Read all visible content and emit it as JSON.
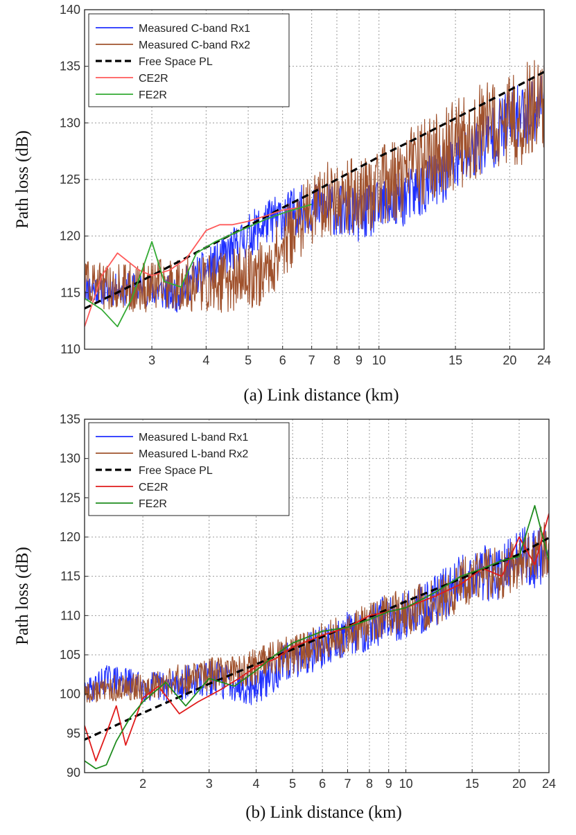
{
  "chart_data": [
    {
      "type": "line",
      "panel": "a",
      "title": "",
      "xlabel": "(a) Link distance (km)",
      "ylabel": "Path loss (dB)",
      "xscale": "log",
      "xlim": [
        2.1,
        24
      ],
      "ylim": [
        110,
        140
      ],
      "xticks": [
        3,
        4,
        5,
        6,
        7,
        8,
        9,
        10,
        15,
        20,
        24
      ],
      "yticks": [
        110,
        115,
        120,
        125,
        130,
        135,
        140
      ],
      "grid": true,
      "legend_position": "top-left",
      "series": [
        {
          "name": "Measured C-band Rx1",
          "color": "#1f2fff",
          "style": "solid",
          "x": [
            2.1,
            2.4,
            2.7,
            3.0,
            3.4,
            3.8,
            4.2,
            4.6,
            5.0,
            5.5,
            6.0,
            6.5,
            7.0,
            7.5,
            8.0,
            8.5,
            9.0,
            10.0,
            11.0,
            12.0,
            13.0,
            14.0,
            15.0,
            16.0,
            17.0,
            18.0,
            20.0,
            22.0,
            24.0
          ],
          "y": [
            115.5,
            115.2,
            115.3,
            115.3,
            114.8,
            116.5,
            117.5,
            118.8,
            120.0,
            121.2,
            121.8,
            122.3,
            122.5,
            122.6,
            122.2,
            122.1,
            121.8,
            122.4,
            123.0,
            123.8,
            124.5,
            125.5,
            126.3,
            127.2,
            128.0,
            128.6,
            130.2,
            131.0,
            132.0
          ]
        },
        {
          "name": "Measured C-band Rx2",
          "color": "#a0522d",
          "style": "solid",
          "x": [
            2.1,
            2.4,
            2.7,
            3.0,
            3.5,
            4.0,
            4.5,
            5.0,
            5.5,
            6.0,
            6.5,
            7.0,
            7.5,
            8.0,
            9.0,
            10.0,
            11.0,
            12.0,
            13.0,
            14.0,
            15.0,
            16.0,
            17.0,
            18.0,
            20.0,
            22.0,
            24.0
          ],
          "y": [
            116.0,
            115.4,
            115.4,
            115.6,
            115.8,
            115.8,
            116.0,
            116.4,
            116.8,
            119.2,
            121.0,
            122.2,
            123.2,
            123.5,
            123.6,
            124.3,
            125.0,
            126.0,
            126.8,
            127.5,
            128.0,
            128.6,
            129.2,
            129.5,
            130.0,
            131.0,
            132.0
          ]
        },
        {
          "name": "Free Space PL",
          "color": "#000000",
          "style": "dashed",
          "x": [
            2.1,
            3.0,
            4.0,
            5.0,
            6.0,
            7.0,
            8.0,
            10.0,
            12.0,
            15.0,
            20.0,
            24.0
          ],
          "y": [
            113.6,
            116.5,
            119.0,
            120.9,
            122.5,
            123.8,
            125.0,
            127.0,
            128.5,
            130.4,
            132.9,
            134.5
          ]
        },
        {
          "name": "CE2R",
          "color": "#ff5a5a",
          "style": "solid",
          "x": [
            2.1,
            2.3,
            2.5,
            2.8,
            3.0,
            3.3,
            3.6,
            4.0,
            4.3,
            4.6,
            5.0,
            5.5,
            6.0,
            6.5
          ],
          "y": [
            112.0,
            116.5,
            118.5,
            117.0,
            116.5,
            117.0,
            118.0,
            120.5,
            121.0,
            121.0,
            121.3,
            121.8,
            122.3,
            122.5
          ]
        },
        {
          "name": "FE2R",
          "color": "#33aa33",
          "style": "solid",
          "x": [
            2.1,
            2.3,
            2.5,
            2.7,
            2.85,
            3.0,
            3.2,
            3.5,
            3.8,
            4.2,
            4.8,
            5.5,
            6.2,
            7.0
          ],
          "y": [
            114.5,
            113.5,
            112.0,
            114.5,
            117.0,
            119.5,
            116.0,
            115.5,
            118.5,
            119.5,
            120.5,
            121.5,
            122.2,
            122.8
          ]
        }
      ]
    },
    {
      "type": "line",
      "panel": "b",
      "title": "",
      "xlabel": "(b) Link distance (km)",
      "ylabel": "Path loss (dB)",
      "xscale": "log",
      "xlim": [
        1.4,
        24
      ],
      "ylim": [
        90,
        135
      ],
      "xticks": [
        2,
        3,
        4,
        5,
        6,
        7,
        8,
        9,
        10,
        15,
        20,
        24
      ],
      "yticks": [
        90,
        95,
        100,
        105,
        110,
        115,
        120,
        125,
        130,
        135
      ],
      "grid": true,
      "legend_position": "top-left",
      "series": [
        {
          "name": "Measured L-band Rx1",
          "color": "#1f2fff",
          "style": "solid",
          "x": [
            1.4,
            1.6,
            1.8,
            2.0,
            2.3,
            2.6,
            3.0,
            3.5,
            4.0,
            4.5,
            5.0,
            6.0,
            7.0,
            8.0,
            9.0,
            10.0,
            12.0,
            13.0,
            14.0,
            16.0,
            18.0,
            20.0,
            22.0,
            24.0
          ],
          "y": [
            100.0,
            102.0,
            101.5,
            101.0,
            101.0,
            101.5,
            102.0,
            101.5,
            101.0,
            103.0,
            104.5,
            106.0,
            107.5,
            108.5,
            110.0,
            110.0,
            112.0,
            113.0,
            115.0,
            115.5,
            115.0,
            118.0,
            117.0,
            118.5
          ]
        },
        {
          "name": "Measured L-band Rx2",
          "color": "#a0522d",
          "style": "solid",
          "x": [
            1.4,
            1.6,
            1.8,
            2.0,
            2.3,
            2.6,
            3.0,
            3.5,
            4.0,
            4.5,
            5.0,
            6.0,
            7.0,
            8.0,
            9.0,
            10.0,
            12.0,
            13.0,
            14.0,
            16.0,
            18.0,
            20.0,
            22.0,
            24.0
          ],
          "y": [
            100.0,
            100.5,
            101.0,
            101.0,
            101.5,
            102.0,
            102.5,
            103.0,
            103.5,
            104.5,
            105.0,
            106.5,
            107.5,
            109.0,
            110.0,
            110.5,
            111.5,
            112.5,
            114.0,
            115.0,
            115.5,
            117.0,
            117.5,
            119.0
          ]
        },
        {
          "name": "Free Space PL",
          "color": "#000000",
          "style": "dashed",
          "x": [
            1.4,
            2.0,
            3.0,
            4.0,
            5.0,
            6.0,
            8.0,
            10.0,
            15.0,
            20.0,
            24.0
          ],
          "y": [
            94.2,
            97.6,
            101.3,
            103.8,
            105.7,
            107.3,
            109.8,
            111.8,
            115.3,
            117.8,
            119.9
          ]
        },
        {
          "name": "CE2R",
          "color": "#e01b1b",
          "style": "solid",
          "x": [
            1.4,
            1.5,
            1.6,
            1.7,
            1.8,
            2.0,
            2.2,
            2.5,
            2.8,
            3.2,
            3.6,
            4.0,
            4.5,
            5.0,
            6.0,
            7.0,
            8.0,
            9.0,
            10.0,
            12.0,
            14.0,
            16.0,
            18.0,
            20.0,
            22.0,
            24.0
          ],
          "y": [
            96.0,
            91.5,
            95.0,
            98.5,
            93.5,
            99.5,
            101.0,
            97.5,
            99.0,
            100.5,
            102.0,
            103.5,
            104.5,
            106.0,
            107.5,
            108.5,
            110.0,
            110.5,
            111.0,
            112.5,
            114.0,
            116.0,
            115.0,
            120.0,
            116.5,
            123.0
          ]
        },
        {
          "name": "FE2R",
          "color": "#1e8c1e",
          "style": "solid",
          "x": [
            1.4,
            1.5,
            1.6,
            1.7,
            1.85,
            2.0,
            2.3,
            2.6,
            3.0,
            3.5,
            4.0,
            4.5,
            5.0,
            6.0,
            7.0,
            8.0,
            9.0,
            10.0,
            12.0,
            14.0,
            16.0,
            18.0,
            20.0,
            22.0,
            24.0
          ],
          "y": [
            91.5,
            90.5,
            91.0,
            94.0,
            97.0,
            99.0,
            101.5,
            98.5,
            102.0,
            101.0,
            103.0,
            105.0,
            106.5,
            108.0,
            108.5,
            109.5,
            110.5,
            111.0,
            113.0,
            115.0,
            116.0,
            117.0,
            117.5,
            124.0,
            117.0
          ]
        }
      ]
    }
  ]
}
